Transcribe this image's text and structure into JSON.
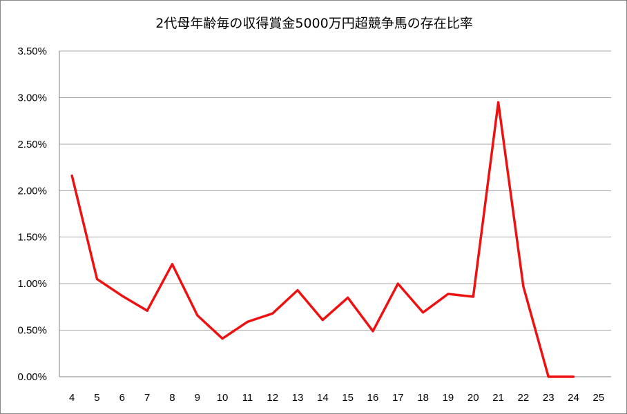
{
  "chart_data": {
    "type": "line",
    "title": "2代母年齢毎の収得賞金5000万円超競争馬の存在比率",
    "categories": [
      "4",
      "5",
      "6",
      "7",
      "8",
      "9",
      "10",
      "11",
      "12",
      "13",
      "14",
      "15",
      "16",
      "17",
      "18",
      "19",
      "20",
      "21",
      "22",
      "23",
      "24",
      "25"
    ],
    "series": [
      {
        "values": [
          2.16,
          1.05,
          0.87,
          0.71,
          1.21,
          0.66,
          0.41,
          0.59,
          0.68,
          0.93,
          0.61,
          0.85,
          0.49,
          1.0,
          0.69,
          0.89,
          0.86,
          2.95,
          0.97,
          0.0,
          0.0,
          null
        ]
      }
    ],
    "yticks": [
      "0.00%",
      "0.50%",
      "1.00%",
      "1.50%",
      "2.00%",
      "2.50%",
      "3.00%",
      "3.50%"
    ],
    "ylim": [
      0,
      3.5
    ],
    "yunit": "%",
    "grid": true,
    "legend": "none",
    "line_color": "#ee1111",
    "grid_color": "#a6a6a6"
  }
}
